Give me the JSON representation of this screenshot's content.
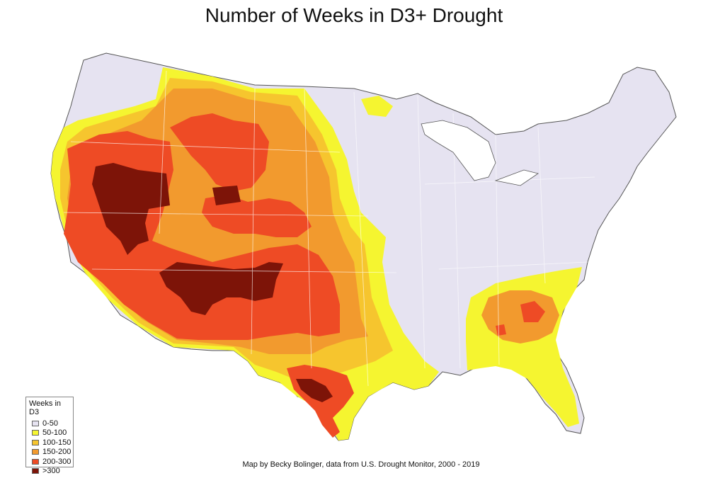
{
  "title": "Number of Weeks in D3+ Drought",
  "credit": "Map by Becky Bolinger, data from U.S. Drought Monitor, 2000 - 2019",
  "legend": {
    "title": "Weeks in D3",
    "items": [
      {
        "label": "0-50",
        "color": "#e6e3f1"
      },
      {
        "label": "50-100",
        "color": "#f5f530"
      },
      {
        "label": "100-150",
        "color": "#f6c52e"
      },
      {
        "label": "150-200",
        "color": "#f29a2e"
      },
      {
        "label": "200-300",
        "color": "#ee4b25"
      },
      {
        "label": ">300",
        "color": "#7d1408"
      }
    ]
  },
  "colors": {
    "state_border": "#ffffff",
    "outline": "#555555"
  }
}
